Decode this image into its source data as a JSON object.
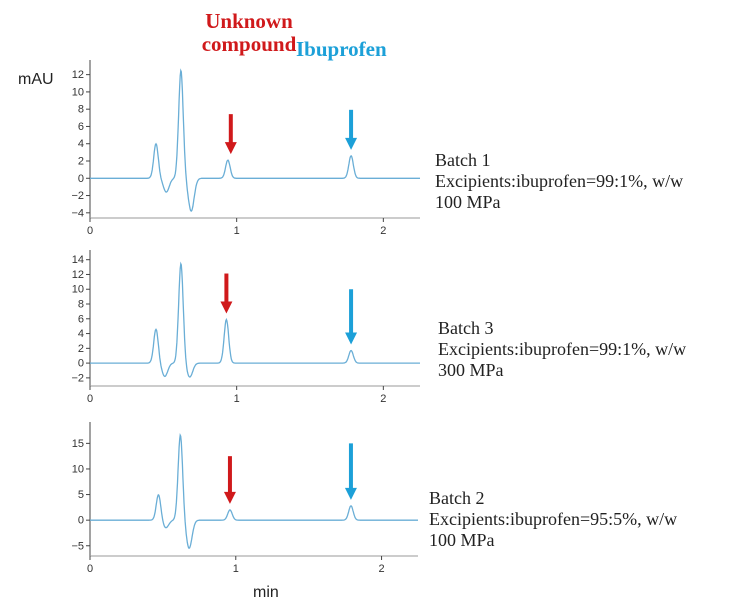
{
  "header": {
    "unknown_label": "Unknown compound",
    "ibuprofen_label": "Ibuprofen",
    "unknown_color": "#d0191b",
    "ibuprofen_color": "#1ca0d8"
  },
  "units": {
    "y": "mAU",
    "x": "min"
  },
  "trace_color": "#6aaed6",
  "chart_data": [
    {
      "type": "line",
      "x_ticks": [
        0,
        1,
        2
      ],
      "y_ticks": [
        -4,
        -2,
        0,
        2,
        4,
        6,
        8,
        10,
        12
      ],
      "xlim": [
        0,
        2.25
      ],
      "ylim": [
        -4.6,
        13
      ],
      "peaks": [
        {
          "t": 0.45,
          "h": 4.0
        },
        {
          "t": 0.62,
          "h": 12.5
        },
        {
          "t": 0.94,
          "h": 2.1
        },
        {
          "t": 1.78,
          "h": 2.6
        }
      ],
      "dips": [
        {
          "t": 0.52,
          "h": -1.6
        },
        {
          "t": 0.69,
          "h": -3.8
        }
      ],
      "arrows": [
        {
          "series": "unknown",
          "t": 0.96,
          "top": 7.0
        },
        {
          "series": "ibuprofen",
          "t": 1.78,
          "top": 7.0
        }
      ],
      "annotation": [
        "Batch 1",
        "Excipients:ibuprofen=99:1%, w/w",
        "100 MPa"
      ]
    },
    {
      "type": "line",
      "x_ticks": [
        0,
        1,
        2
      ],
      "y_ticks": [
        -2,
        0,
        2,
        4,
        6,
        8,
        10,
        12,
        14
      ],
      "xlim": [
        0,
        2.25
      ],
      "ylim": [
        -3.1,
        14.5
      ],
      "peaks": [
        {
          "t": 0.45,
          "h": 4.6
        },
        {
          "t": 0.62,
          "h": 13.5
        },
        {
          "t": 0.93,
          "h": 5.9
        },
        {
          "t": 1.78,
          "h": 1.7
        }
      ],
      "dips": [
        {
          "t": 0.51,
          "h": -1.8
        },
        {
          "t": 0.68,
          "h": -1.9
        }
      ],
      "arrows": [
        {
          "series": "unknown",
          "t": 0.93,
          "top": 11.5
        },
        {
          "series": "ibuprofen",
          "t": 1.78,
          "top": 10.0
        }
      ],
      "annotation": [
        "Batch 3",
        "Excipients:ibuprofen=99:1%, w/w",
        "300 MPa"
      ]
    },
    {
      "type": "line",
      "x_ticks": [
        0,
        1,
        2
      ],
      "y_ticks": [
        -5,
        0,
        5,
        10,
        15
      ],
      "xlim": [
        0,
        2.25
      ],
      "ylim": [
        -7,
        18
      ],
      "peaks": [
        {
          "t": 0.47,
          "h": 5.0
        },
        {
          "t": 0.62,
          "h": 16.7
        },
        {
          "t": 0.96,
          "h": 2.0
        },
        {
          "t": 1.79,
          "h": 2.8
        }
      ],
      "dips": [
        {
          "t": 0.52,
          "h": -1.5
        },
        {
          "t": 0.68,
          "h": -5.5
        }
      ],
      "arrows": [
        {
          "series": "unknown",
          "t": 0.96,
          "top": 12.5
        },
        {
          "series": "ibuprofen",
          "t": 1.79,
          "top": 15.0
        }
      ],
      "annotation": [
        "Batch 2",
        "Excipients:ibuprofen=95:5%, w/w",
        "100 MPa"
      ]
    }
  ]
}
